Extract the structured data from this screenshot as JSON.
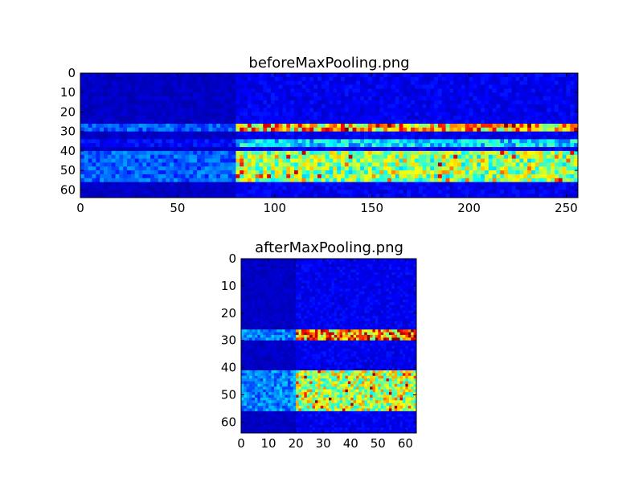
{
  "chart_data": [
    {
      "type": "heatmap",
      "title": "beforeMaxPooling.png",
      "xlabel": "",
      "ylabel": "",
      "colormap": "jet",
      "xlim": [
        0,
        256
      ],
      "ylim": [
        64,
        0
      ],
      "x_ticks": [
        0,
        50,
        100,
        150,
        200,
        250
      ],
      "y_ticks": [
        0,
        10,
        20,
        30,
        40,
        50,
        60
      ],
      "grid": false,
      "signal_starts_at_x": 81,
      "bands": [
        {
          "rows": [
            26,
            30
          ],
          "intensity_before_signal": 0.25,
          "intensity_after_signal": 0.8
        },
        {
          "rows": [
            35,
            38
          ],
          "intensity_before_signal": 0.15,
          "intensity_after_signal": 0.4
        },
        {
          "rows": [
            41,
            56
          ],
          "intensity_before_signal": 0.25,
          "intensity_after_signal": 0.6
        }
      ]
    },
    {
      "type": "heatmap",
      "title": "afterMaxPooling.png",
      "xlabel": "",
      "ylabel": "",
      "colormap": "jet",
      "xlim": [
        0,
        64
      ],
      "ylim": [
        64,
        0
      ],
      "x_ticks": [
        0,
        10,
        20,
        30,
        40,
        50,
        60
      ],
      "y_ticks": [
        0,
        10,
        20,
        30,
        40,
        50,
        60
      ],
      "grid": false,
      "signal_starts_at_x": 20,
      "bands": [
        {
          "rows": [
            26,
            30
          ],
          "intensity_before_signal": 0.3,
          "intensity_after_signal": 0.85
        },
        {
          "rows": [
            41,
            56
          ],
          "intensity_before_signal": 0.3,
          "intensity_after_signal": 0.65
        }
      ]
    }
  ]
}
